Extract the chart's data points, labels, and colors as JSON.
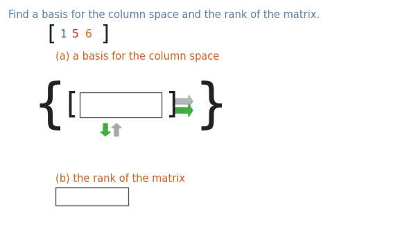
{
  "title_text": "Find a basis for the column space and the rank of the matrix.",
  "title_color": "#5b7fa6",
  "matrix_num_1": "1",
  "matrix_num_2": "5",
  "matrix_num_3": "6",
  "color_1": "#2e6b9e",
  "color_2": "#cc2222",
  "color_3": "#cc6600",
  "part_a_label": "(a) a basis for the column space",
  "part_b_label": "(b) the rank of the matrix",
  "text_color": "#cc6622",
  "bracket_color": "#222222",
  "box_edge_color": "#555555",
  "arrow_green": "#44aa44",
  "arrow_gray": "#aaaaaa",
  "bg_color": "#ffffff",
  "fig_width": 5.87,
  "fig_height": 3.27,
  "dpi": 100
}
